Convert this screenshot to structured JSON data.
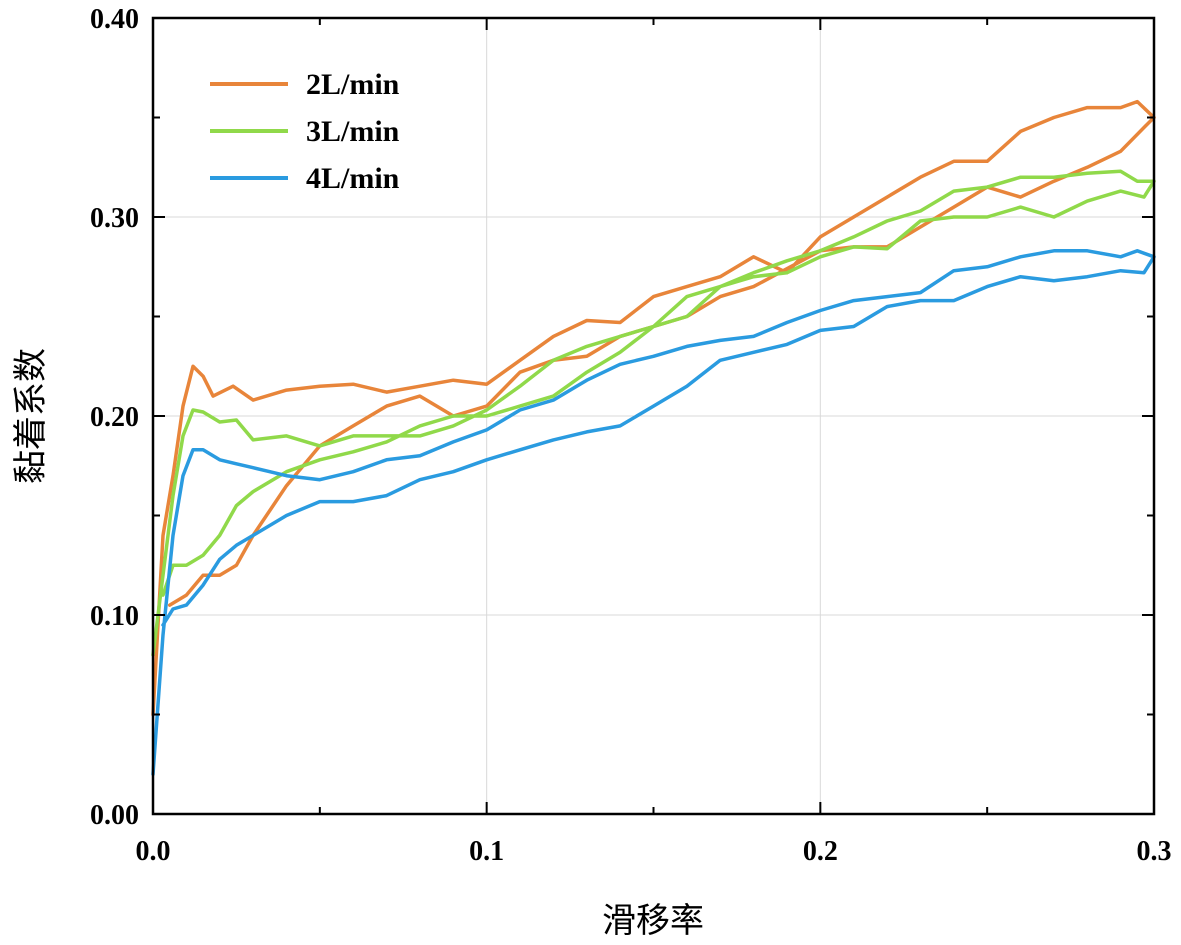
{
  "chart_data": {
    "type": "line",
    "title": "",
    "xlabel": "滑移率",
    "ylabel": "黏着系数",
    "xlim": [
      0.0,
      0.3
    ],
    "ylim": [
      0.0,
      0.4
    ],
    "grid": true,
    "legend_position": "top-left",
    "x_ticks": [
      {
        "value": 0.0,
        "label": "0.0"
      },
      {
        "value": 0.1,
        "label": "0.1"
      },
      {
        "value": 0.2,
        "label": "0.2"
      },
      {
        "value": 0.3,
        "label": "0.3"
      }
    ],
    "y_ticks": [
      {
        "value": 0.0,
        "label": "0.00"
      },
      {
        "value": 0.1,
        "label": "0.10"
      },
      {
        "value": 0.2,
        "label": "0.20"
      },
      {
        "value": 0.3,
        "label": "0.30"
      },
      {
        "value": 0.4,
        "label": "0.40"
      }
    ],
    "series": [
      {
        "name": "2L/min",
        "color": "#E8853A",
        "points": [
          [
            0.0,
            0.05
          ],
          [
            0.003,
            0.14
          ],
          [
            0.006,
            0.17
          ],
          [
            0.009,
            0.205
          ],
          [
            0.012,
            0.225
          ],
          [
            0.015,
            0.22
          ],
          [
            0.018,
            0.21
          ],
          [
            0.024,
            0.215
          ],
          [
            0.03,
            0.208
          ],
          [
            0.04,
            0.213
          ],
          [
            0.05,
            0.215
          ],
          [
            0.06,
            0.216
          ],
          [
            0.07,
            0.212
          ],
          [
            0.08,
            0.215
          ],
          [
            0.09,
            0.218
          ],
          [
            0.1,
            0.216
          ],
          [
            0.11,
            0.228
          ],
          [
            0.12,
            0.24
          ],
          [
            0.13,
            0.248
          ],
          [
            0.14,
            0.247
          ],
          [
            0.15,
            0.26
          ],
          [
            0.16,
            0.265
          ],
          [
            0.17,
            0.27
          ],
          [
            0.18,
            0.28
          ],
          [
            0.19,
            0.272
          ],
          [
            0.2,
            0.29
          ],
          [
            0.21,
            0.3
          ],
          [
            0.22,
            0.31
          ],
          [
            0.23,
            0.32
          ],
          [
            0.24,
            0.328
          ],
          [
            0.25,
            0.328
          ],
          [
            0.26,
            0.343
          ],
          [
            0.27,
            0.35
          ],
          [
            0.28,
            0.355
          ],
          [
            0.29,
            0.355
          ],
          [
            0.295,
            0.358
          ],
          [
            0.3,
            0.35
          ],
          [
            0.297,
            0.345
          ],
          [
            0.29,
            0.333
          ],
          [
            0.28,
            0.325
          ],
          [
            0.27,
            0.318
          ],
          [
            0.26,
            0.31
          ],
          [
            0.25,
            0.315
          ],
          [
            0.24,
            0.305
          ],
          [
            0.23,
            0.295
          ],
          [
            0.22,
            0.285
          ],
          [
            0.21,
            0.285
          ],
          [
            0.2,
            0.283
          ],
          [
            0.19,
            0.274
          ],
          [
            0.18,
            0.265
          ],
          [
            0.17,
            0.26
          ],
          [
            0.16,
            0.25
          ],
          [
            0.15,
            0.245
          ],
          [
            0.14,
            0.24
          ],
          [
            0.13,
            0.23
          ],
          [
            0.12,
            0.228
          ],
          [
            0.11,
            0.222
          ],
          [
            0.1,
            0.205
          ],
          [
            0.09,
            0.2
          ],
          [
            0.08,
            0.21
          ],
          [
            0.07,
            0.205
          ],
          [
            0.06,
            0.195
          ],
          [
            0.05,
            0.185
          ],
          [
            0.04,
            0.165
          ],
          [
            0.03,
            0.14
          ],
          [
            0.025,
            0.125
          ],
          [
            0.02,
            0.12
          ],
          [
            0.015,
            0.12
          ],
          [
            0.01,
            0.11
          ],
          [
            0.005,
            0.105
          ]
        ]
      },
      {
        "name": "3L/min",
        "color": "#90D94A",
        "points": [
          [
            0.0,
            0.08
          ],
          [
            0.003,
            0.12
          ],
          [
            0.006,
            0.16
          ],
          [
            0.009,
            0.19
          ],
          [
            0.012,
            0.203
          ],
          [
            0.015,
            0.202
          ],
          [
            0.02,
            0.197
          ],
          [
            0.025,
            0.198
          ],
          [
            0.03,
            0.188
          ],
          [
            0.04,
            0.19
          ],
          [
            0.05,
            0.185
          ],
          [
            0.06,
            0.19
          ],
          [
            0.07,
            0.19
          ],
          [
            0.08,
            0.19
          ],
          [
            0.09,
            0.195
          ],
          [
            0.1,
            0.203
          ],
          [
            0.11,
            0.215
          ],
          [
            0.12,
            0.228
          ],
          [
            0.13,
            0.235
          ],
          [
            0.14,
            0.24
          ],
          [
            0.15,
            0.245
          ],
          [
            0.16,
            0.26
          ],
          [
            0.17,
            0.265
          ],
          [
            0.18,
            0.272
          ],
          [
            0.19,
            0.278
          ],
          [
            0.2,
            0.283
          ],
          [
            0.21,
            0.29
          ],
          [
            0.22,
            0.298
          ],
          [
            0.23,
            0.303
          ],
          [
            0.24,
            0.313
          ],
          [
            0.25,
            0.315
          ],
          [
            0.26,
            0.32
          ],
          [
            0.27,
            0.32
          ],
          [
            0.28,
            0.322
          ],
          [
            0.29,
            0.323
          ],
          [
            0.295,
            0.318
          ],
          [
            0.3,
            0.318
          ],
          [
            0.297,
            0.31
          ],
          [
            0.29,
            0.313
          ],
          [
            0.28,
            0.308
          ],
          [
            0.27,
            0.3
          ],
          [
            0.26,
            0.305
          ],
          [
            0.25,
            0.3
          ],
          [
            0.24,
            0.3
          ],
          [
            0.23,
            0.298
          ],
          [
            0.22,
            0.284
          ],
          [
            0.21,
            0.285
          ],
          [
            0.2,
            0.28
          ],
          [
            0.19,
            0.272
          ],
          [
            0.18,
            0.27
          ],
          [
            0.17,
            0.265
          ],
          [
            0.16,
            0.25
          ],
          [
            0.15,
            0.245
          ],
          [
            0.14,
            0.232
          ],
          [
            0.13,
            0.222
          ],
          [
            0.12,
            0.21
          ],
          [
            0.11,
            0.205
          ],
          [
            0.1,
            0.2
          ],
          [
            0.09,
            0.2
          ],
          [
            0.08,
            0.195
          ],
          [
            0.07,
            0.187
          ],
          [
            0.06,
            0.182
          ],
          [
            0.05,
            0.178
          ],
          [
            0.04,
            0.172
          ],
          [
            0.03,
            0.162
          ],
          [
            0.025,
            0.155
          ],
          [
            0.02,
            0.14
          ],
          [
            0.015,
            0.13
          ],
          [
            0.01,
            0.125
          ],
          [
            0.006,
            0.125
          ],
          [
            0.003,
            0.11
          ]
        ]
      },
      {
        "name": "4L/min",
        "color": "#2A9BE0",
        "points": [
          [
            0.0,
            0.02
          ],
          [
            0.003,
            0.09
          ],
          [
            0.006,
            0.14
          ],
          [
            0.009,
            0.17
          ],
          [
            0.012,
            0.183
          ],
          [
            0.015,
            0.183
          ],
          [
            0.02,
            0.178
          ],
          [
            0.025,
            0.176
          ],
          [
            0.03,
            0.174
          ],
          [
            0.035,
            0.172
          ],
          [
            0.04,
            0.17
          ],
          [
            0.05,
            0.168
          ],
          [
            0.06,
            0.172
          ],
          [
            0.07,
            0.178
          ],
          [
            0.08,
            0.18
          ],
          [
            0.09,
            0.187
          ],
          [
            0.1,
            0.193
          ],
          [
            0.11,
            0.203
          ],
          [
            0.12,
            0.208
          ],
          [
            0.13,
            0.218
          ],
          [
            0.14,
            0.226
          ],
          [
            0.15,
            0.23
          ],
          [
            0.16,
            0.235
          ],
          [
            0.17,
            0.238
          ],
          [
            0.18,
            0.24
          ],
          [
            0.19,
            0.247
          ],
          [
            0.2,
            0.253
          ],
          [
            0.21,
            0.258
          ],
          [
            0.22,
            0.26
          ],
          [
            0.23,
            0.262
          ],
          [
            0.24,
            0.273
          ],
          [
            0.25,
            0.275
          ],
          [
            0.26,
            0.28
          ],
          [
            0.27,
            0.283
          ],
          [
            0.28,
            0.283
          ],
          [
            0.29,
            0.28
          ],
          [
            0.295,
            0.283
          ],
          [
            0.3,
            0.28
          ],
          [
            0.297,
            0.272
          ],
          [
            0.29,
            0.273
          ],
          [
            0.28,
            0.27
          ],
          [
            0.27,
            0.268
          ],
          [
            0.26,
            0.27
          ],
          [
            0.25,
            0.265
          ],
          [
            0.24,
            0.258
          ],
          [
            0.23,
            0.258
          ],
          [
            0.22,
            0.255
          ],
          [
            0.21,
            0.245
          ],
          [
            0.2,
            0.243
          ],
          [
            0.19,
            0.236
          ],
          [
            0.18,
            0.232
          ],
          [
            0.17,
            0.228
          ],
          [
            0.16,
            0.215
          ],
          [
            0.15,
            0.205
          ],
          [
            0.14,
            0.195
          ],
          [
            0.13,
            0.192
          ],
          [
            0.12,
            0.188
          ],
          [
            0.11,
            0.183
          ],
          [
            0.1,
            0.178
          ],
          [
            0.09,
            0.172
          ],
          [
            0.08,
            0.168
          ],
          [
            0.07,
            0.16
          ],
          [
            0.06,
            0.157
          ],
          [
            0.05,
            0.157
          ],
          [
            0.04,
            0.15
          ],
          [
            0.03,
            0.14
          ],
          [
            0.025,
            0.135
          ],
          [
            0.02,
            0.128
          ],
          [
            0.015,
            0.115
          ],
          [
            0.01,
            0.105
          ],
          [
            0.006,
            0.103
          ],
          [
            0.003,
            0.095
          ]
        ]
      }
    ]
  }
}
